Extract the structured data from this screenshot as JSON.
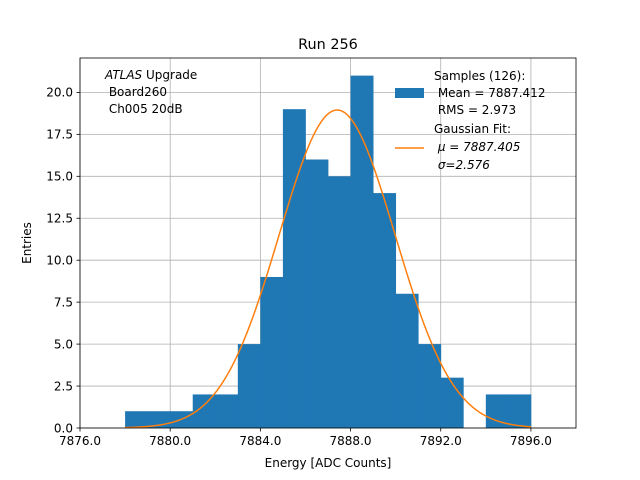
{
  "chart_data": {
    "type": "bar",
    "title": "Run 256",
    "xlabel": "Energy [ADC Counts]",
    "ylabel": "Entries",
    "xlim": [
      7876.0,
      7898.0
    ],
    "ylim": [
      0,
      22.05
    ],
    "xticks": [
      7876.0,
      7880.0,
      7884.0,
      7888.0,
      7892.0,
      7896.0
    ],
    "xtick_labels": [
      "7876.0",
      "7880.0",
      "7884.0",
      "7888.0",
      "7892.0",
      "7896.0"
    ],
    "yticks": [
      0,
      2.5,
      5,
      7.5,
      10,
      12.5,
      15,
      17.5,
      20
    ],
    "ytick_labels": [
      "0.0",
      "2.5",
      "5.0",
      "7.5",
      "10.0",
      "12.5",
      "15.0",
      "17.5",
      "20.0"
    ],
    "grid": true,
    "histogram": {
      "bin_edges": [
        7878.0,
        7879.0,
        7880.0,
        7881.0,
        7882.0,
        7883.0,
        7884.0,
        7885.0,
        7886.0,
        7887.0,
        7888.0,
        7889.0,
        7890.0,
        7891.0,
        7892.0,
        7893.0,
        7894.0,
        7895.0,
        7896.0
      ],
      "counts": [
        1,
        1,
        1,
        2,
        2,
        5,
        9,
        19,
        16,
        15,
        21,
        14,
        8,
        5,
        3,
        0,
        2,
        2
      ],
      "color": "#1f77b4"
    },
    "fit": {
      "mu": 7887.405,
      "sigma": 2.576,
      "amplitude": 18.95,
      "color": "#ff7f0e"
    },
    "annotation": {
      "atlas": "ATLAS",
      "upgrade": " Upgrade",
      "line2": " Board260",
      "line3": " Ch005 20dB"
    },
    "legend": {
      "placement": "top-right",
      "samples_lines": [
        "Samples (126):",
        " Mean = 7887.412",
        " RMS = 2.973"
      ],
      "fit_lines": [
        "Gaussian Fit:",
        "μ = 7887.405",
        "σ=2.576"
      ],
      "fit_prefixes": [
        " ",
        " "
      ]
    }
  }
}
